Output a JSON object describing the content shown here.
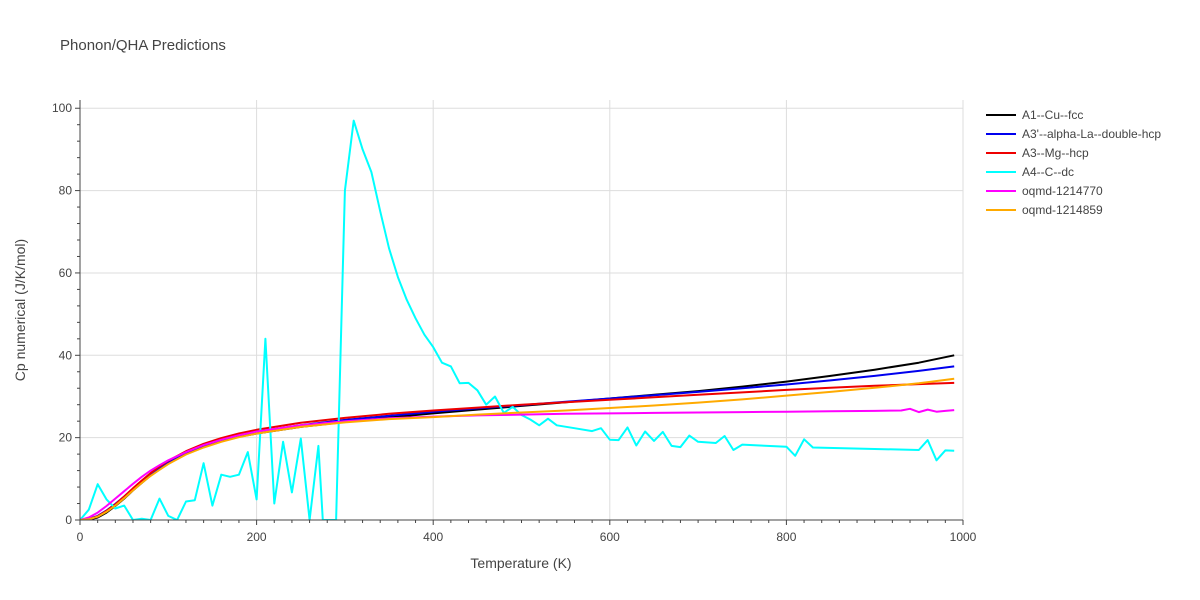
{
  "chart_data": {
    "type": "line",
    "title": "Phonon/QHA Predictions",
    "xlabel": "Temperature (K)",
    "ylabel": "Cp numerical (J/K/mol)",
    "xlim": [
      0,
      1000
    ],
    "ylim": [
      0,
      102
    ],
    "xticks": [
      0,
      200,
      400,
      600,
      800,
      1000
    ],
    "yticks": [
      0,
      20,
      40,
      60,
      80,
      100
    ],
    "grid": true,
    "legend_position": "top-right",
    "series": [
      {
        "name": "A1--Cu--fcc",
        "color": "#000000",
        "points": [
          [
            0,
            0
          ],
          [
            10,
            0.1
          ],
          [
            20,
            0.6
          ],
          [
            30,
            1.8
          ],
          [
            40,
            3.4
          ],
          [
            50,
            5.2
          ],
          [
            60,
            7.2
          ],
          [
            70,
            9.0
          ],
          [
            80,
            10.8
          ],
          [
            90,
            12.3
          ],
          [
            100,
            13.7
          ],
          [
            120,
            16.0
          ],
          [
            140,
            17.7
          ],
          [
            160,
            19.1
          ],
          [
            180,
            20.2
          ],
          [
            200,
            21.0
          ],
          [
            250,
            22.6
          ],
          [
            300,
            23.8
          ],
          [
            350,
            24.9
          ],
          [
            400,
            25.9
          ],
          [
            450,
            26.8
          ],
          [
            500,
            27.7
          ],
          [
            550,
            28.6
          ],
          [
            600,
            29.5
          ],
          [
            650,
            30.4
          ],
          [
            700,
            31.3
          ],
          [
            750,
            32.4
          ],
          [
            800,
            33.6
          ],
          [
            850,
            35.0
          ],
          [
            900,
            36.5
          ],
          [
            950,
            38.2
          ],
          [
            990,
            40.0
          ]
        ]
      },
      {
        "name": "A3'--alpha-La--double-hcp",
        "color": "#0000ee",
        "points": [
          [
            0,
            0
          ],
          [
            10,
            0.3
          ],
          [
            20,
            1.0
          ],
          [
            30,
            2.3
          ],
          [
            40,
            3.9
          ],
          [
            50,
            5.7
          ],
          [
            60,
            7.6
          ],
          [
            70,
            9.4
          ],
          [
            80,
            11.1
          ],
          [
            90,
            12.6
          ],
          [
            100,
            14.0
          ],
          [
            120,
            16.3
          ],
          [
            140,
            18.0
          ],
          [
            160,
            19.4
          ],
          [
            180,
            20.5
          ],
          [
            200,
            21.4
          ],
          [
            250,
            23.0
          ],
          [
            300,
            24.3
          ],
          [
            350,
            25.3
          ],
          [
            400,
            26.3
          ],
          [
            450,
            27.1
          ],
          [
            500,
            27.9
          ],
          [
            550,
            28.7
          ],
          [
            600,
            29.5
          ],
          [
            650,
            30.3
          ],
          [
            700,
            31.1
          ],
          [
            750,
            32.0
          ],
          [
            800,
            32.9
          ],
          [
            850,
            33.9
          ],
          [
            900,
            35.0
          ],
          [
            950,
            36.2
          ],
          [
            990,
            37.3
          ]
        ]
      },
      {
        "name": "A3--Mg--hcp",
        "color": "#ee0000",
        "points": [
          [
            0,
            0
          ],
          [
            10,
            0.2
          ],
          [
            20,
            0.9
          ],
          [
            30,
            2.2
          ],
          [
            40,
            3.8
          ],
          [
            50,
            5.7
          ],
          [
            60,
            7.7
          ],
          [
            70,
            9.6
          ],
          [
            80,
            11.4
          ],
          [
            90,
            13.0
          ],
          [
            100,
            14.4
          ],
          [
            120,
            16.7
          ],
          [
            140,
            18.5
          ],
          [
            160,
            19.9
          ],
          [
            180,
            21.0
          ],
          [
            200,
            21.9
          ],
          [
            250,
            23.6
          ],
          [
            300,
            24.8
          ],
          [
            350,
            25.8
          ],
          [
            400,
            26.6
          ],
          [
            450,
            27.3
          ],
          [
            500,
            28.0
          ],
          [
            550,
            28.6
          ],
          [
            600,
            29.2
          ],
          [
            650,
            29.8
          ],
          [
            700,
            30.4
          ],
          [
            750,
            31.0
          ],
          [
            800,
            31.6
          ],
          [
            850,
            32.1
          ],
          [
            900,
            32.6
          ],
          [
            950,
            33.0
          ],
          [
            990,
            33.3
          ]
        ]
      },
      {
        "name": "A4--C--dc",
        "color": "#00ffff",
        "points": [
          [
            0,
            0
          ],
          [
            10,
            2.5
          ],
          [
            20,
            8.7
          ],
          [
            30,
            5.0
          ],
          [
            40,
            2.8
          ],
          [
            50,
            3.5
          ],
          [
            60,
            0
          ],
          [
            70,
            0.3
          ],
          [
            80,
            0
          ],
          [
            90,
            5.2
          ],
          [
            100,
            1.0
          ],
          [
            110,
            0
          ],
          [
            120,
            4.5
          ],
          [
            130,
            4.8
          ],
          [
            140,
            13.8
          ],
          [
            150,
            3.5
          ],
          [
            160,
            11.0
          ],
          [
            170,
            10.5
          ],
          [
            180,
            11.0
          ],
          [
            190,
            16.5
          ],
          [
            200,
            5.0
          ],
          [
            210,
            44.0
          ],
          [
            220,
            4.0
          ],
          [
            230,
            19.0
          ],
          [
            240,
            6.7
          ],
          [
            250,
            19.8
          ],
          [
            260,
            0
          ],
          [
            270,
            18.0
          ],
          [
            275,
            0
          ],
          [
            290,
            0
          ],
          [
            300,
            80.0
          ],
          [
            310,
            97.0
          ],
          [
            320,
            90.0
          ],
          [
            330,
            84.5
          ],
          [
            340,
            75.0
          ],
          [
            350,
            66.0
          ],
          [
            360,
            59.0
          ],
          [
            370,
            53.5
          ],
          [
            380,
            49.0
          ],
          [
            390,
            45.0
          ],
          [
            400,
            42.0
          ],
          [
            410,
            38.2
          ],
          [
            420,
            37.3
          ],
          [
            430,
            33.2
          ],
          [
            440,
            33.3
          ],
          [
            450,
            31.5
          ],
          [
            460,
            28.0
          ],
          [
            470,
            30.0
          ],
          [
            480,
            26.0
          ],
          [
            490,
            27.5
          ],
          [
            500,
            25.5
          ],
          [
            510,
            24.4
          ],
          [
            520,
            23.0
          ],
          [
            530,
            24.6
          ],
          [
            540,
            23.0
          ],
          [
            560,
            22.3
          ],
          [
            580,
            21.6
          ],
          [
            590,
            22.3
          ],
          [
            600,
            19.5
          ],
          [
            610,
            19.4
          ],
          [
            620,
            22.5
          ],
          [
            630,
            18.1
          ],
          [
            640,
            21.5
          ],
          [
            650,
            19.2
          ],
          [
            660,
            21.4
          ],
          [
            670,
            18.0
          ],
          [
            680,
            17.7
          ],
          [
            690,
            20.5
          ],
          [
            700,
            19.0
          ],
          [
            720,
            18.7
          ],
          [
            730,
            20.4
          ],
          [
            740,
            17.0
          ],
          [
            750,
            18.3
          ],
          [
            770,
            18.1
          ],
          [
            800,
            17.8
          ],
          [
            810,
            15.6
          ],
          [
            820,
            19.6
          ],
          [
            830,
            17.6
          ],
          [
            950,
            17.0
          ],
          [
            960,
            19.4
          ],
          [
            970,
            14.5
          ],
          [
            980,
            16.9
          ],
          [
            990,
            16.8
          ]
        ]
      },
      {
        "name": "oqmd-1214770",
        "color": "#ff00ff",
        "points": [
          [
            0,
            0
          ],
          [
            10,
            0.6
          ],
          [
            20,
            1.8
          ],
          [
            30,
            3.4
          ],
          [
            40,
            5.2
          ],
          [
            50,
            7.0
          ],
          [
            60,
            8.8
          ],
          [
            70,
            10.5
          ],
          [
            80,
            12.0
          ],
          [
            90,
            13.3
          ],
          [
            100,
            14.5
          ],
          [
            120,
            16.5
          ],
          [
            140,
            18.2
          ],
          [
            160,
            19.5
          ],
          [
            180,
            20.6
          ],
          [
            200,
            21.5
          ],
          [
            250,
            23.0
          ],
          [
            300,
            24.0
          ],
          [
            350,
            24.7
          ],
          [
            400,
            25.1
          ],
          [
            450,
            25.4
          ],
          [
            500,
            25.6
          ],
          [
            550,
            25.8
          ],
          [
            600,
            25.9
          ],
          [
            650,
            26.0
          ],
          [
            700,
            26.1
          ],
          [
            750,
            26.2
          ],
          [
            800,
            26.3
          ],
          [
            850,
            26.4
          ],
          [
            900,
            26.5
          ],
          [
            930,
            26.6
          ],
          [
            940,
            27.0
          ],
          [
            950,
            26.2
          ],
          [
            960,
            26.8
          ],
          [
            970,
            26.3
          ],
          [
            980,
            26.5
          ],
          [
            990,
            26.7
          ]
        ]
      },
      {
        "name": "oqmd-1214859",
        "color": "#ffaa00",
        "points": [
          [
            0,
            0
          ],
          [
            10,
            0.2
          ],
          [
            20,
            0.8
          ],
          [
            30,
            2.0
          ],
          [
            40,
            3.5
          ],
          [
            50,
            5.3
          ],
          [
            60,
            7.2
          ],
          [
            70,
            9.0
          ],
          [
            80,
            10.7
          ],
          [
            90,
            12.2
          ],
          [
            100,
            13.6
          ],
          [
            120,
            15.9
          ],
          [
            140,
            17.6
          ],
          [
            160,
            19.0
          ],
          [
            180,
            20.1
          ],
          [
            200,
            21.0
          ],
          [
            250,
            22.6
          ],
          [
            300,
            23.7
          ],
          [
            350,
            24.5
          ],
          [
            400,
            25.0
          ],
          [
            450,
            25.6
          ],
          [
            500,
            26.1
          ],
          [
            550,
            26.6
          ],
          [
            600,
            27.2
          ],
          [
            650,
            27.8
          ],
          [
            700,
            28.5
          ],
          [
            750,
            29.3
          ],
          [
            800,
            30.2
          ],
          [
            850,
            31.1
          ],
          [
            900,
            32.1
          ],
          [
            950,
            33.2
          ],
          [
            990,
            34.3
          ]
        ]
      }
    ]
  }
}
